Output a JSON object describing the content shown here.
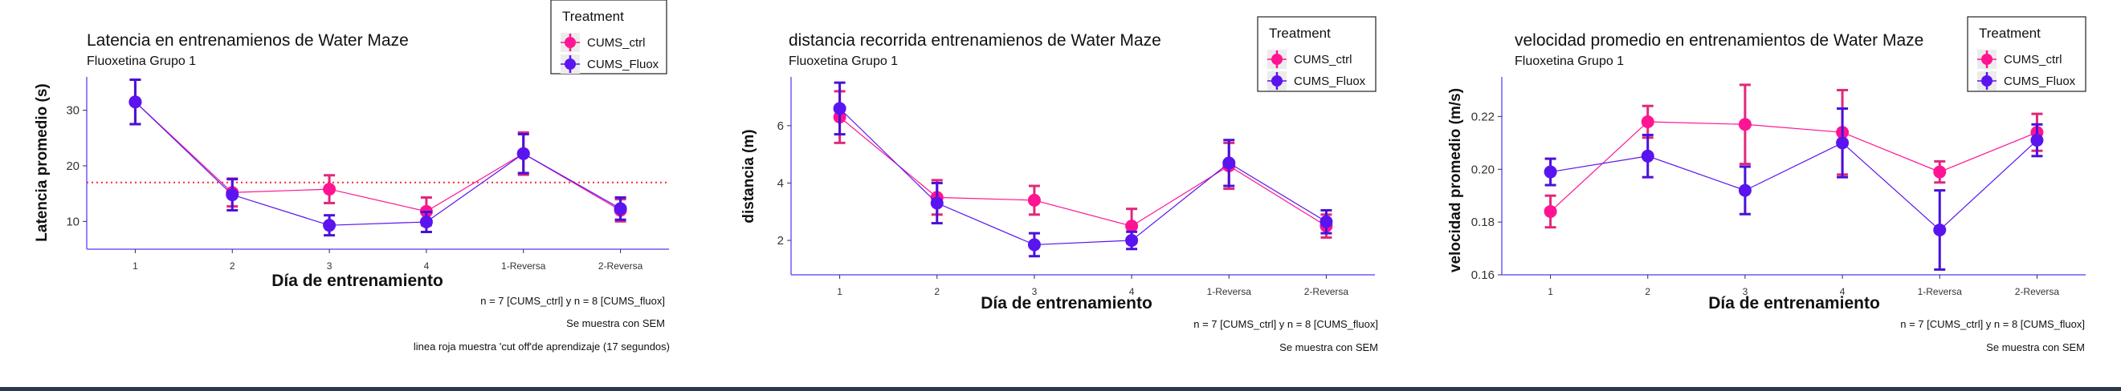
{
  "legend_title": "Treatment",
  "colors": {
    "ctrl": "#ff1493",
    "fluox": "#5a14f0",
    "ctrl_err": "#e0287a",
    "fluox_err": "#4a10d8",
    "axis": "#6a5cff",
    "cutoff": "#ff2a2a"
  },
  "chart_data": [
    {
      "type": "line",
      "title": "Latencia en entrenamienos de Water Maze",
      "subtitle": "Fluoxetina Grupo 1",
      "xlabel": "Día de entrenamiento",
      "ylabel": "Latencia promedio (s)",
      "categories": [
        "1",
        "2",
        "3",
        "4",
        "1-Reversa",
        "2-Reversa"
      ],
      "ylim": [
        5,
        36
      ],
      "yticks": [
        "10",
        "20",
        "30"
      ],
      "grid": false,
      "legend_position": "top-right",
      "reference_line": {
        "y": 17,
        "style": "dotted",
        "color": "red"
      },
      "series": [
        {
          "name": "CUMS_ctrl",
          "values": [
            31.5,
            15.2,
            15.8,
            11.8,
            22.2,
            12.0
          ],
          "err": [
            4.0,
            2.5,
            2.5,
            2.5,
            3.8,
            2.0
          ]
        },
        {
          "name": "CUMS_Fluox",
          "values": [
            31.5,
            14.8,
            9.3,
            9.9,
            22.2,
            12.3
          ],
          "err": [
            4.0,
            2.8,
            1.8,
            1.8,
            3.5,
            2.0
          ]
        }
      ],
      "notes": [
        "n = 7  [CUMS_ctrl] y n = 8 [CUMS_fluox]",
        "Se muestra con SEM",
        "linea roja muestra 'cut off'de aprendizaje (17 segundos)"
      ]
    },
    {
      "type": "line",
      "title": "distancia recorrida entrenamienos de Water Maze",
      "subtitle": "Fluoxetina Grupo 1",
      "xlabel": "Día de entrenamiento",
      "ylabel": "distancia (m)",
      "categories": [
        "1",
        "2",
        "3",
        "4",
        "1-Reversa",
        "2-Reversa"
      ],
      "ylim": [
        0.8,
        7.7
      ],
      "yticks": [
        "2",
        "4",
        "6"
      ],
      "grid": false,
      "legend_position": "top-right",
      "series": [
        {
          "name": "CUMS_ctrl",
          "values": [
            6.3,
            3.5,
            3.4,
            2.5,
            4.6,
            2.5
          ],
          "err": [
            0.9,
            0.6,
            0.5,
            0.6,
            0.8,
            0.4
          ]
        },
        {
          "name": "CUMS_Fluox",
          "values": [
            6.6,
            3.3,
            1.85,
            2.0,
            4.7,
            2.65
          ],
          "err": [
            0.9,
            0.7,
            0.4,
            0.3,
            0.8,
            0.4
          ]
        }
      ],
      "notes": [
        "n = 7  [CUMS_ctrl] y n = 8 [CUMS_fluox]",
        "Se muestra con SEM"
      ]
    },
    {
      "type": "line",
      "title": "velocidad promedio en entrenamientos de Water Maze",
      "subtitle": "Fluoxetina Grupo 1",
      "xlabel": "Día de entrenamiento",
      "ylabel": "velocidad promedio (m/s)",
      "categories": [
        "1",
        "2",
        "3",
        "4",
        "1-Reversa",
        "2-Reversa"
      ],
      "ylim": [
        0.16,
        0.235
      ],
      "yticks": [
        "0.16",
        "0.18",
        "0.20",
        "0.22"
      ],
      "grid": false,
      "legend_position": "top-right",
      "series": [
        {
          "name": "CUMS_ctrl",
          "values": [
            0.184,
            0.218,
            0.217,
            0.214,
            0.199,
            0.214
          ],
          "err": [
            0.006,
            0.006,
            0.015,
            0.016,
            0.004,
            0.007
          ]
        },
        {
          "name": "CUMS_Fluox",
          "values": [
            0.199,
            0.205,
            0.192,
            0.21,
            0.177,
            0.211
          ],
          "err": [
            0.005,
            0.008,
            0.009,
            0.013,
            0.015,
            0.006
          ]
        }
      ],
      "notes": [
        "n = 7  [CUMS_ctrl] y n = 8 [CUMS_fluox]",
        "Se muestra con SEM"
      ]
    }
  ]
}
